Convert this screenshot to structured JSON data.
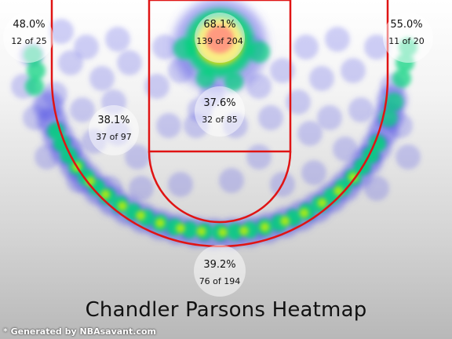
{
  "title": "Chandler Parsons Heatmap",
  "credit": "* Generated by NBAsavant.com",
  "colors": {
    "court_line": "#e01414",
    "zone_bubble": "#ffffff",
    "heat_low": "#5a5ae6",
    "heat_mid": "#00d27a",
    "heat_high": "#ffdc00",
    "heat_max": "#ff2a00"
  },
  "chart_data": {
    "type": "heatmap",
    "title": "Chandler Parsons Heatmap",
    "zones": [
      {
        "zone": "left-corner-three",
        "pct": "48.0%",
        "made": 12,
        "attempts": 25
      },
      {
        "zone": "restricted-area",
        "pct": "68.1%",
        "made": 139,
        "attempts": 204
      },
      {
        "zone": "right-corner-three",
        "pct": "55.0%",
        "made": 11,
        "attempts": 20
      },
      {
        "zone": "left-mid-range",
        "pct": "38.1%",
        "made": 37,
        "attempts": 97
      },
      {
        "zone": "paint-non-ra",
        "pct": "37.6%",
        "made": 32,
        "attempts": 85
      },
      {
        "zone": "above-break-three",
        "pct": "39.2%",
        "made": 76,
        "attempts": 194
      }
    ]
  }
}
